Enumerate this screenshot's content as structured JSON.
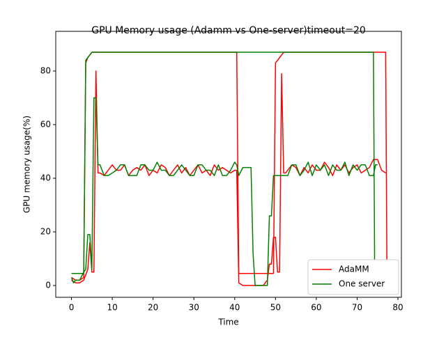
{
  "chart_data": {
    "type": "line",
    "title": "GPU Memory usage (Adamm vs One-server)timeout=20",
    "x_label": "Time",
    "y_label": "GPU memory usage(%)",
    "xlim": [
      -3.85,
      80.85
    ],
    "ylim": [
      -4.4,
      94.8
    ],
    "xticks": [
      0,
      10,
      20,
      30,
      40,
      50,
      60,
      70,
      80
    ],
    "yticks": [
      0,
      20,
      40,
      60,
      80
    ],
    "grid": false,
    "legend": "lower right",
    "series": [
      {
        "name": "AdaMM",
        "color": "#ff0000",
        "x": [
          0,
          1,
          2,
          3,
          3.5,
          4,
          5,
          6,
          40.5,
          41,
          49.5,
          50,
          51,
          52,
          77,
          77.3,
          null,
          0,
          1,
          2,
          3,
          4,
          4.5,
          5,
          5.5,
          6,
          6.5,
          7,
          8,
          9,
          10,
          11,
          12,
          13,
          14,
          15,
          16,
          17,
          18,
          19,
          20,
          21,
          22,
          23,
          24,
          25,
          26,
          27,
          28,
          29,
          30,
          31,
          32,
          33,
          34,
          35,
          36,
          37,
          38,
          39,
          40,
          40.5,
          41,
          42,
          43,
          47,
          48,
          48.5,
          49,
          49.5,
          50,
          50.5,
          51,
          51.5,
          52,
          52.5,
          53,
          54,
          55,
          56,
          57,
          58,
          59,
          60,
          61,
          62,
          63,
          64,
          65,
          66,
          67,
          68,
          69,
          70,
          71,
          72,
          73,
          74,
          75,
          76,
          77
        ],
        "values": [
          3,
          2,
          2,
          3,
          83,
          85,
          87,
          87,
          87,
          4.5,
          4.5,
          83,
          85,
          87,
          87,
          5,
          null,
          2,
          1,
          1,
          2,
          6,
          16,
          5,
          5,
          80,
          42,
          42,
          41,
          43,
          45,
          43,
          43,
          45,
          41,
          43,
          44,
          43,
          45,
          41,
          43,
          42,
          45,
          44,
          41,
          43,
          45,
          42,
          44,
          41,
          43,
          45,
          42,
          43,
          41,
          45,
          43,
          44,
          43,
          42,
          43,
          43,
          1,
          0,
          0,
          0,
          2,
          8,
          8,
          18,
          18,
          5,
          5,
          79,
          42,
          42,
          43,
          45,
          44,
          41,
          44,
          42,
          45,
          43,
          43,
          46,
          44,
          41,
          45,
          43,
          45,
          42,
          44,
          45,
          42,
          43,
          44,
          47,
          47,
          43,
          42
        ]
      },
      {
        "name": "One server",
        "color": "#008000",
        "x": [
          0,
          1,
          2,
          3,
          3.5,
          4,
          5,
          6,
          74,
          74.3,
          null,
          0,
          0.5,
          1,
          2,
          3,
          3.5,
          4,
          4.5,
          5,
          5.5,
          6,
          6.5,
          7,
          8,
          9,
          10,
          11,
          12,
          13,
          14,
          15,
          16,
          17,
          18,
          19,
          20,
          21,
          22,
          23,
          24,
          25,
          26,
          27,
          28,
          29,
          30,
          31,
          32,
          33,
          34,
          35,
          36,
          37,
          38,
          39,
          40,
          40.5,
          41,
          42,
          43,
          44,
          44.5,
          45,
          48,
          48.5,
          49,
          49.5,
          50,
          51,
          52,
          53,
          54,
          55,
          56,
          57,
          58,
          59,
          60,
          61,
          62,
          63,
          64,
          65,
          66,
          67,
          68,
          69,
          70,
          71,
          72,
          73,
          74,
          74.5,
          75
        ],
        "values": [
          4.5,
          4.5,
          4.5,
          4.5,
          84,
          85,
          87,
          87,
          87,
          5,
          null,
          3,
          1,
          2,
          2,
          5,
          6,
          19,
          19,
          6,
          70,
          70,
          45,
          45,
          41,
          41,
          42,
          43,
          45,
          45,
          41,
          41,
          41,
          45,
          45,
          43,
          43,
          46,
          43,
          43,
          41,
          41,
          43,
          45,
          43,
          41,
          41,
          45,
          45,
          43,
          43,
          41,
          45,
          41,
          41,
          43,
          46,
          45,
          41,
          44,
          44,
          44,
          12,
          0,
          0,
          26,
          26,
          41,
          41,
          41,
          41,
          41,
          45,
          45,
          41,
          43,
          46,
          41,
          45,
          43,
          45,
          41,
          45,
          43,
          43,
          46,
          41,
          45,
          43,
          45,
          45,
          41,
          41,
          45,
          45
        ]
      }
    ]
  }
}
